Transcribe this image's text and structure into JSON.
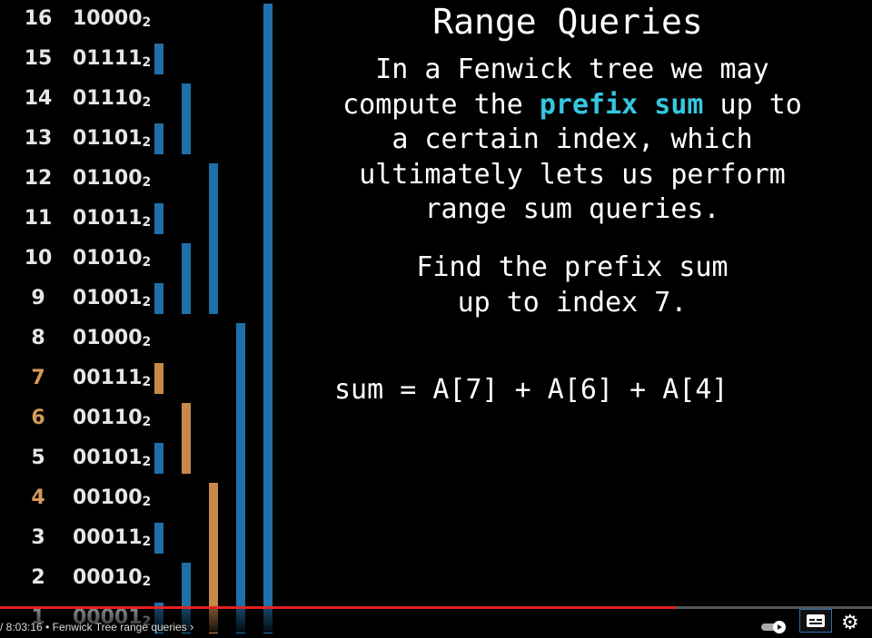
{
  "title": "Range Queries",
  "description": {
    "line1": "In a Fenwick tree we may",
    "line2_pre": "compute the ",
    "line2_highlight": "prefix sum",
    "line2_post": " up to",
    "line3": "a certain index, which",
    "line4": "ultimately lets us perform",
    "line5": "range sum queries."
  },
  "task": {
    "line1": "Find the prefix sum",
    "line2": "up to index 7."
  },
  "formula": "sum = A[7] + A[6] + A[4]",
  "tree_rows": [
    {
      "index": "16",
      "bits": "10000",
      "base": "2",
      "highlight": false
    },
    {
      "index": "15",
      "bits": "01111",
      "base": "2",
      "highlight": false
    },
    {
      "index": "14",
      "bits": "01110",
      "base": "2",
      "highlight": false
    },
    {
      "index": "13",
      "bits": "01101",
      "base": "2",
      "highlight": false
    },
    {
      "index": "12",
      "bits": "01100",
      "base": "2",
      "highlight": false
    },
    {
      "index": "11",
      "bits": "01011",
      "base": "2",
      "highlight": false
    },
    {
      "index": "10",
      "bits": "01010",
      "base": "2",
      "highlight": false
    },
    {
      "index": "9",
      "bits": "01001",
      "base": "2",
      "highlight": false
    },
    {
      "index": "8",
      "bits": "01000",
      "base": "2",
      "highlight": false
    },
    {
      "index": "7",
      "bits": "00111",
      "base": "2",
      "highlight": true
    },
    {
      "index": "6",
      "bits": "00110",
      "base": "2",
      "highlight": true
    },
    {
      "index": "5",
      "bits": "00101",
      "base": "2",
      "highlight": false
    },
    {
      "index": "4",
      "bits": "00100",
      "base": "2",
      "highlight": true
    },
    {
      "index": "3",
      "bits": "00011",
      "base": "2",
      "highlight": false
    },
    {
      "index": "2",
      "bits": "00010",
      "base": "2",
      "highlight": false
    },
    {
      "index": "1",
      "bits": "00001",
      "base": "2",
      "highlight": false
    }
  ],
  "bar_highlight_indices": [
    7,
    6,
    4
  ],
  "colors": {
    "bar_default": "#1f6fa8",
    "bar_highlight": "#c8884a",
    "index_highlight": "#d49a5a",
    "prefix_sum_highlight": "#35c7e0",
    "progress": "#e22222"
  },
  "player": {
    "time_text": "/ 8:03:16",
    "separator": "•",
    "chapter_title": "Fenwick Tree range queries",
    "chapter_chevron": "›",
    "progress_fraction": 0.775,
    "icons": [
      "autoplay-toggle-icon",
      "subtitles-icon",
      "settings-gear-icon"
    ]
  }
}
